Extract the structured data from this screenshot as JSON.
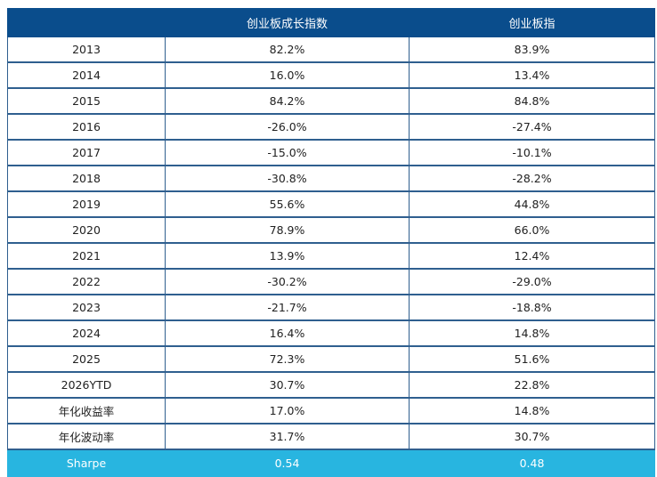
{
  "table": {
    "headers": [
      "",
      "创业板成长指数",
      "创业板指"
    ],
    "rows": [
      [
        "2013",
        "82.2%",
        "83.9%"
      ],
      [
        "2014",
        "16.0%",
        "13.4%"
      ],
      [
        "2015",
        "84.2%",
        "84.8%"
      ],
      [
        "2016",
        "-26.0%",
        "-27.4%"
      ],
      [
        "2017",
        "-15.0%",
        "-10.1%"
      ],
      [
        "2018",
        "-30.8%",
        "-28.2%"
      ],
      [
        "2019",
        "55.6%",
        "44.8%"
      ],
      [
        "2020",
        "78.9%",
        "66.0%"
      ],
      [
        "2021",
        "13.9%",
        "12.4%"
      ],
      [
        "2022",
        "-30.2%",
        "-29.0%"
      ],
      [
        "2023",
        "-21.7%",
        "-18.8%"
      ],
      [
        "2024",
        "16.4%",
        "14.8%"
      ],
      [
        "2025",
        "72.3%",
        "51.6%"
      ],
      [
        "2026YTD",
        "30.7%",
        "22.8%"
      ],
      [
        "年化收益率",
        "17.0%",
        "14.8%"
      ],
      [
        "年化波动率",
        "31.7%",
        "30.7%"
      ]
    ],
    "footer_row": [
      "Sharpe",
      "0.54",
      "0.48"
    ]
  },
  "colors": {
    "header_bg": "#0a4d8c",
    "sharpe_bg": "#28b5e0",
    "grid_line": "#2f5f8f"
  }
}
